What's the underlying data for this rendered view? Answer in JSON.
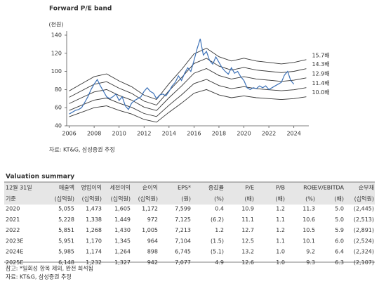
{
  "title": "Forward P/E band",
  "chart_data": {
    "type": "line",
    "y_label": "(천원)",
    "xlim": [
      2005.8,
      2025.2
    ],
    "ylim": [
      40,
      140
    ],
    "xticks": [
      2006,
      2008,
      2010,
      2012,
      2014,
      2016,
      2018,
      2020,
      2022,
      2024
    ],
    "yticks": [
      40,
      60,
      80,
      100,
      120,
      140
    ],
    "series": [
      {
        "name": "15.7배",
        "color": "#333333",
        "x": [
          2006,
          2007,
          2008,
          2009,
          2010,
          2011,
          2012,
          2013,
          2014,
          2015,
          2016,
          2017,
          2018,
          2019,
          2020,
          2021,
          2022,
          2023,
          2024,
          2025
        ],
        "values": [
          78.5,
          86.4,
          94.2,
          97.3,
          89.5,
          83.2,
          73.8,
          69.1,
          86.4,
          102,
          119.3,
          125.6,
          116.2,
          111.5,
          114.6,
          111.5,
          109.9,
          108.3,
          109.9,
          113
        ]
      },
      {
        "name": "14.3배",
        "color": "#333333",
        "x": [
          2006,
          2007,
          2008,
          2009,
          2010,
          2011,
          2012,
          2013,
          2014,
          2015,
          2016,
          2017,
          2018,
          2019,
          2020,
          2021,
          2022,
          2023,
          2024,
          2025
        ],
        "values": [
          71.5,
          78.7,
          85.8,
          88.7,
          81.5,
          75.8,
          67.2,
          62.9,
          78.7,
          93,
          108.7,
          114.4,
          105.8,
          101.5,
          104.4,
          101.5,
          100.1,
          98.7,
          100.1,
          103
        ]
      },
      {
        "name": "12.9배",
        "color": "#333333",
        "x": [
          2006,
          2007,
          2008,
          2009,
          2010,
          2011,
          2012,
          2013,
          2014,
          2015,
          2016,
          2017,
          2018,
          2019,
          2020,
          2021,
          2022,
          2023,
          2024,
          2025
        ],
        "values": [
          64.5,
          71,
          77.4,
          80,
          73.5,
          68.4,
          60.6,
          56.8,
          71,
          83.9,
          98,
          103.2,
          95.5,
          91.6,
          94.2,
          91.6,
          90.3,
          89,
          90.3,
          92.9
        ]
      },
      {
        "name": "11.4배",
        "color": "#333333",
        "x": [
          2006,
          2007,
          2008,
          2009,
          2010,
          2011,
          2012,
          2013,
          2014,
          2015,
          2016,
          2017,
          2018,
          2019,
          2020,
          2021,
          2022,
          2023,
          2024,
          2025
        ],
        "values": [
          57,
          62.7,
          68.4,
          70.7,
          65,
          60.4,
          53.6,
          50.2,
          62.7,
          74.1,
          86.6,
          91.2,
          84.4,
          80.9,
          83.2,
          80.9,
          79.8,
          78.7,
          79.8,
          82.1
        ]
      },
      {
        "name": "10.0배",
        "color": "#333333",
        "x": [
          2006,
          2007,
          2008,
          2009,
          2010,
          2011,
          2012,
          2013,
          2014,
          2015,
          2016,
          2017,
          2018,
          2019,
          2020,
          2021,
          2022,
          2023,
          2024,
          2025
        ],
        "values": [
          50,
          55,
          60,
          62,
          57,
          53,
          47,
          44,
          55,
          65,
          76,
          80,
          74,
          71,
          73,
          71,
          70,
          69,
          70,
          72
        ]
      },
      {
        "color": "#3d72b8",
        "x": [
          2006,
          2006.25,
          2006.5,
          2006.75,
          2007,
          2007.25,
          2007.5,
          2007.75,
          2008,
          2008.25,
          2008.5,
          2008.75,
          2009,
          2009.25,
          2009.5,
          2009.75,
          2010,
          2010.25,
          2010.5,
          2010.75,
          2011,
          2011.25,
          2011.5,
          2011.75,
          2012,
          2012.25,
          2012.5,
          2012.75,
          2013,
          2013.25,
          2013.5,
          2013.75,
          2014,
          2014.25,
          2014.5,
          2014.75,
          2015,
          2015.25,
          2015.5,
          2015.75,
          2016,
          2016.25,
          2016.5,
          2016.75,
          2017,
          2017.25,
          2017.5,
          2017.75,
          2018,
          2018.25,
          2018.5,
          2018.75,
          2019,
          2019.25,
          2019.5,
          2019.75,
          2020,
          2020.25,
          2020.5,
          2020.75,
          2021,
          2021.25,
          2021.5,
          2021.75,
          2022,
          2022.25,
          2022.5,
          2022.75,
          2023,
          2023.25,
          2023.5,
          2023.75,
          2024
        ],
        "values": [
          53,
          55,
          57,
          58,
          60,
          66,
          72,
          80,
          86,
          91,
          84,
          78,
          72,
          70,
          72,
          75,
          68,
          72,
          62,
          58,
          65,
          68,
          70,
          72,
          78,
          82,
          78,
          76,
          70,
          74,
          75,
          73,
          78,
          84,
          88,
          95,
          90,
          98,
          104,
          100,
          112,
          125,
          136,
          118,
          122,
          112,
          108,
          116,
          110,
          104,
          100,
          97,
          104,
          98,
          100,
          94,
          90,
          82,
          80,
          82,
          81,
          84,
          82,
          84,
          80,
          82,
          84,
          86,
          88,
          96,
          100,
          90,
          86
        ]
      }
    ]
  },
  "source": "자료: KT&G, 삼성증권 추정",
  "table": {
    "title": "Valuation summary",
    "header": [
      [
        "12월 31일",
        "매출액",
        "영업이익",
        "세전이익",
        "순이익",
        "EPS*",
        "증감률",
        "P/E",
        "P/B",
        "ROE",
        "EV/EBITDA",
        "순부채"
      ],
      [
        "기준",
        "(십억원)",
        "(십억원)",
        "(십억원)",
        "(십억원)",
        "(원)",
        "(%)",
        "(배)",
        "(배)",
        "(%)",
        "(배)",
        "(십억원)"
      ]
    ],
    "rows": [
      [
        "2020",
        "5,055",
        "1,473",
        "1,605",
        "1,172",
        "7,599",
        "0.4",
        "10.9",
        "1.2",
        "11.3",
        "5.0",
        "(2,445)"
      ],
      [
        "2021",
        "5,228",
        "1,338",
        "1,449",
        "972",
        "7,125",
        "(6.2)",
        "11.1",
        "1.1",
        "10.6",
        "5.0",
        "(2,513)"
      ],
      [
        "2022",
        "5,851",
        "1,268",
        "1,430",
        "1,005",
        "7,213",
        "1.2",
        "12.7",
        "1.2",
        "10.5",
        "5.9",
        "(2,891)"
      ],
      [
        "2023E",
        "5,951",
        "1,170",
        "1,345",
        "964",
        "7,104",
        "(1.5)",
        "12.5",
        "1.1",
        "10.1",
        "6.0",
        "(2,524)"
      ],
      [
        "2024E",
        "5,985",
        "1,174",
        "1,264",
        "898",
        "6,745",
        "(5.1)",
        "13.2",
        "1.0",
        "9.2",
        "6.4",
        "(2,324)"
      ],
      [
        "2025E",
        "6,148",
        "1,232",
        "1,327",
        "942",
        "7,077",
        "4.9",
        "12.6",
        "1.0",
        "9.3",
        "6.3",
        "(2,107)"
      ]
    ]
  },
  "notes": [
    "참고: *일회성 항목 제외, 완전 희석됨",
    "자료: KT&G, 삼성증권 추정"
  ]
}
